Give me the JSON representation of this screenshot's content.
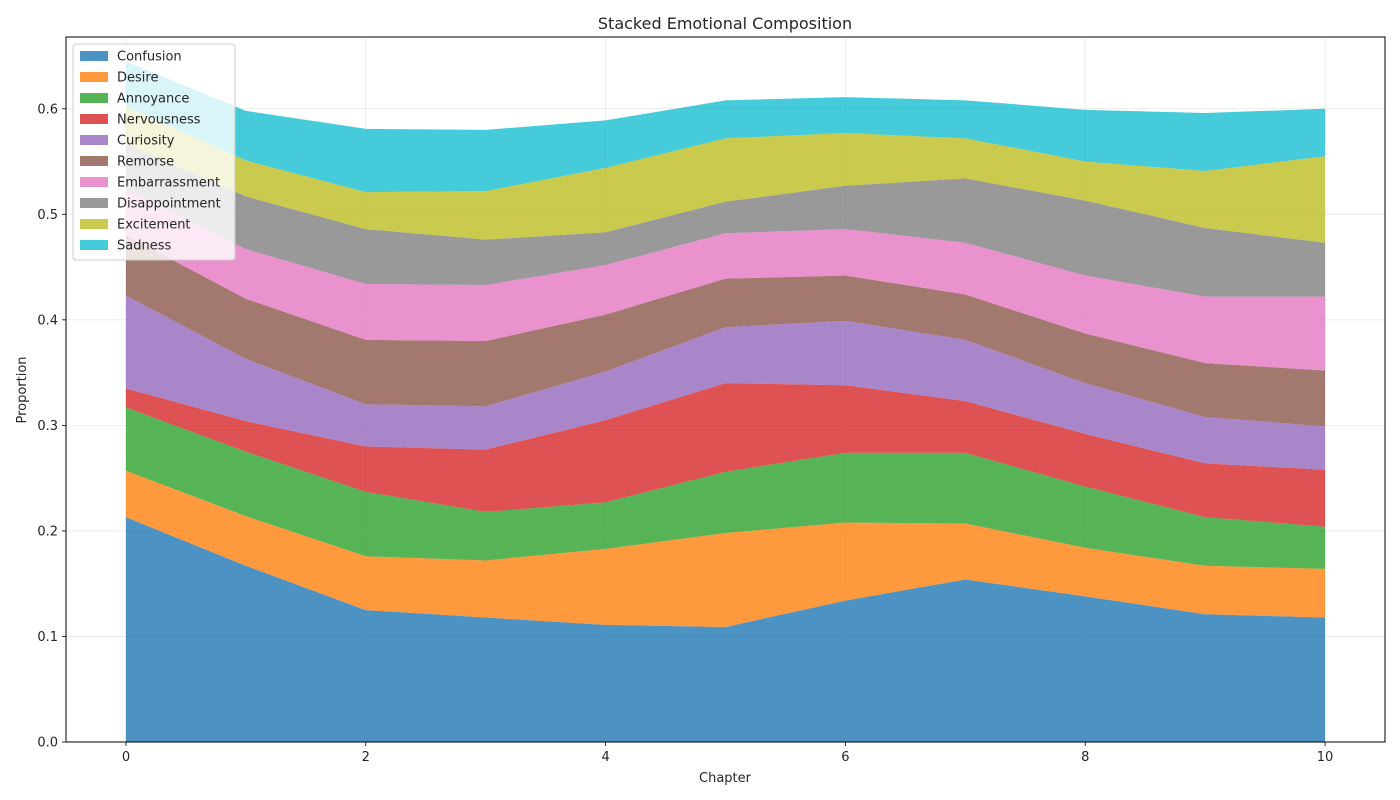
{
  "chart_data": {
    "type": "area",
    "stacked": true,
    "title": "Stacked Emotional Composition",
    "xlabel": "Chapter",
    "ylabel": "Proportion",
    "x": [
      0,
      1,
      2,
      3,
      4,
      5,
      6,
      7,
      8,
      9,
      10
    ],
    "xticks": [
      0,
      2,
      4,
      6,
      8,
      10
    ],
    "yticks": [
      0.0,
      0.1,
      0.2,
      0.3,
      0.4,
      0.5,
      0.6
    ],
    "xlim": [
      -0.5,
      10.5
    ],
    "ylim": [
      0,
      0.668
    ],
    "grid": true,
    "legend_position": "upper-left",
    "series": [
      {
        "name": "Confusion",
        "color": "#1f77b4",
        "values": [
          0.213,
          0.167,
          0.125,
          0.118,
          0.111,
          0.109,
          0.134,
          0.154,
          0.138,
          0.121,
          0.118
        ]
      },
      {
        "name": "Desire",
        "color": "#ff7f0e",
        "values": [
          0.044,
          0.047,
          0.051,
          0.054,
          0.072,
          0.089,
          0.074,
          0.053,
          0.046,
          0.046,
          0.046
        ]
      },
      {
        "name": "Annoyance",
        "color": "#2ca02c",
        "values": [
          0.06,
          0.061,
          0.061,
          0.046,
          0.044,
          0.058,
          0.066,
          0.067,
          0.058,
          0.046,
          0.04
        ]
      },
      {
        "name": "Nervousness",
        "color": "#d62728",
        "values": [
          0.018,
          0.029,
          0.043,
          0.059,
          0.078,
          0.084,
          0.064,
          0.049,
          0.05,
          0.051,
          0.054
        ]
      },
      {
        "name": "Curiosity",
        "color": "#9467bd",
        "values": [
          0.088,
          0.059,
          0.04,
          0.041,
          0.046,
          0.053,
          0.061,
          0.058,
          0.048,
          0.044,
          0.041
        ]
      },
      {
        "name": "Remorse",
        "color": "#8c564b",
        "values": [
          0.057,
          0.057,
          0.061,
          0.062,
          0.054,
          0.046,
          0.043,
          0.043,
          0.047,
          0.051,
          0.053
        ]
      },
      {
        "name": "Embarrassment",
        "color": "#e377c2",
        "values": [
          0.044,
          0.047,
          0.053,
          0.053,
          0.047,
          0.043,
          0.044,
          0.049,
          0.055,
          0.063,
          0.07
        ]
      },
      {
        "name": "Disappointment",
        "color": "#7f7f7f",
        "values": [
          0.043,
          0.05,
          0.052,
          0.043,
          0.031,
          0.03,
          0.041,
          0.061,
          0.071,
          0.065,
          0.051
        ]
      },
      {
        "name": "Excitement",
        "color": "#bcbd22",
        "values": [
          0.035,
          0.034,
          0.035,
          0.046,
          0.061,
          0.06,
          0.05,
          0.038,
          0.037,
          0.054,
          0.082
        ]
      },
      {
        "name": "Sadness",
        "color": "#17becf",
        "values": [
          0.043,
          0.047,
          0.06,
          0.058,
          0.045,
          0.036,
          0.034,
          0.036,
          0.049,
          0.055,
          0.045
        ]
      }
    ]
  }
}
